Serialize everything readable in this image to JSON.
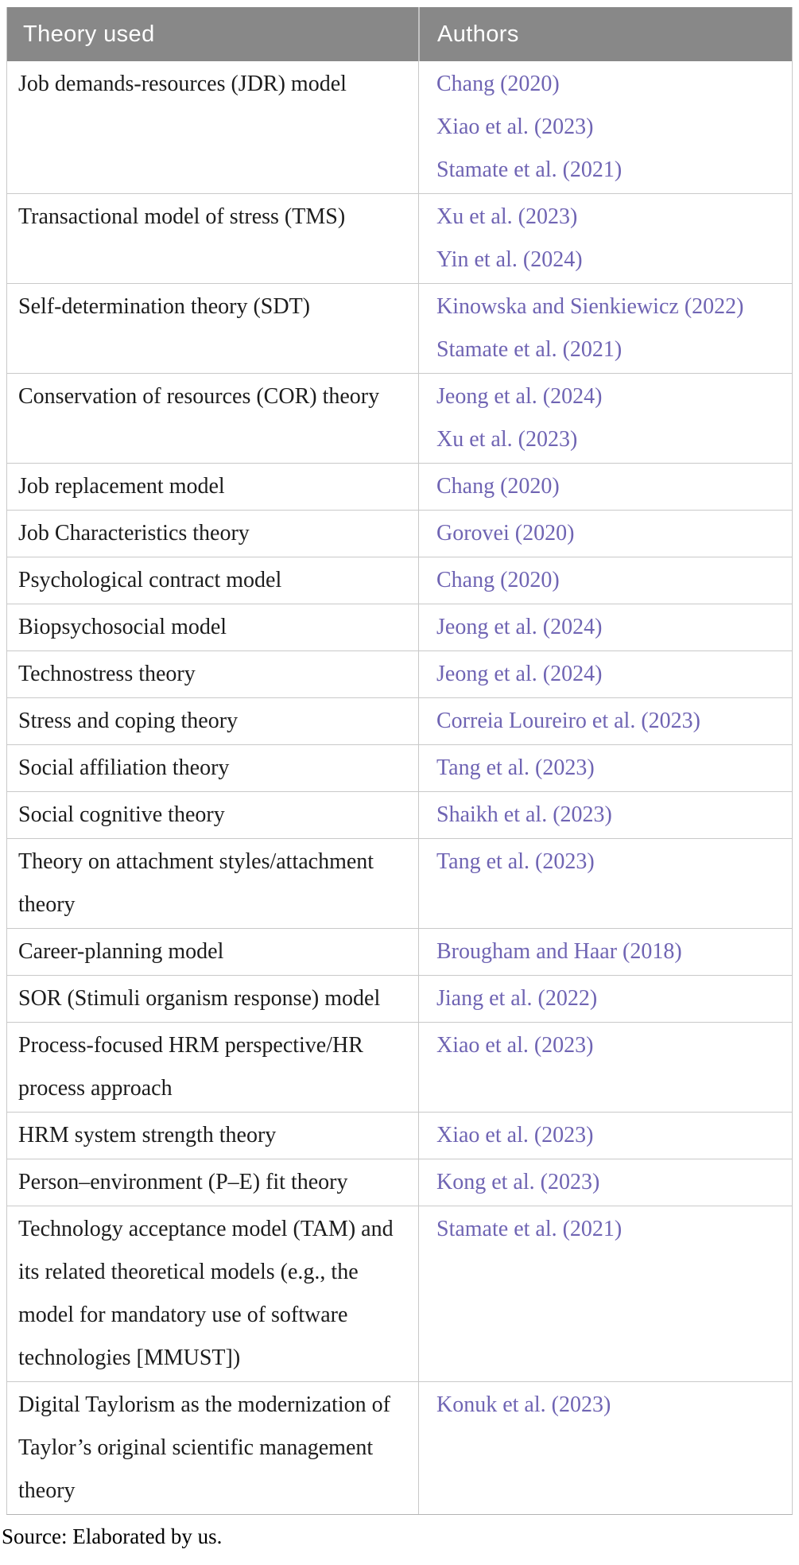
{
  "table": {
    "header": {
      "theory": "Theory used",
      "authors": "Authors"
    },
    "rows": [
      {
        "theory": "Job demands-resources (JDR) model",
        "authors": [
          "Chang (2020)",
          "Xiao et al. (2023)",
          "Stamate et al. (2021)"
        ]
      },
      {
        "theory": "Transactional model of stress (TMS)",
        "authors": [
          "Xu et al. (2023)",
          "Yin et al. (2024)"
        ]
      },
      {
        "theory": "Self-determination theory (SDT)",
        "authors": [
          "Kinowska and Sienkiewicz (2022)",
          "Stamate et al. (2021)"
        ]
      },
      {
        "theory": "Conservation of resources (COR) theory",
        "authors": [
          "Jeong et al. (2024)",
          "Xu et al. (2023)"
        ]
      },
      {
        "theory": "Job replacement model",
        "authors": [
          "Chang (2020)"
        ]
      },
      {
        "theory": "Job Characteristics theory",
        "authors": [
          "Gorovei (2020)"
        ]
      },
      {
        "theory": "Psychological contract model",
        "authors": [
          "Chang (2020)"
        ]
      },
      {
        "theory": "Biopsychosocial model",
        "authors": [
          "Jeong et al. (2024)"
        ]
      },
      {
        "theory": "Technostress theory",
        "authors": [
          "Jeong et al. (2024)"
        ]
      },
      {
        "theory": "Stress and coping theory",
        "authors": [
          "Correia Loureiro et al. (2023)"
        ]
      },
      {
        "theory": "Social affiliation theory",
        "authors": [
          "Tang et al. (2023)"
        ]
      },
      {
        "theory": "Social cognitive theory",
        "authors": [
          "Shaikh et al. (2023)"
        ]
      },
      {
        "theory": "Theory on attachment styles/attachment theory",
        "authors": [
          "Tang et al. (2023)"
        ]
      },
      {
        "theory": "Career-planning model",
        "authors": [
          "Brougham and Haar (2018)"
        ]
      },
      {
        "theory": "SOR (Stimuli organism response) model",
        "authors": [
          "Jiang et al. (2022)"
        ]
      },
      {
        "theory": "Process-focused HRM perspective/HR process approach",
        "authors": [
          "Xiao et al. (2023)"
        ]
      },
      {
        "theory": "HRM system strength theory",
        "authors": [
          "Xiao et al. (2023)"
        ]
      },
      {
        "theory": "Person–environment (P–E) fit theory",
        "authors": [
          "Kong et al. (2023)"
        ]
      },
      {
        "theory": "Technology acceptance model (TAM) and its related theoretical models (e.g., the model for mandatory use of software technologies [MMUST])",
        "authors": [
          "Stamate et al. (2021)"
        ]
      },
      {
        "theory": "Digital Taylorism as the modernization of Taylor’s original scientific management theory",
        "authors": [
          "Konuk et al. (2023)"
        ]
      }
    ]
  },
  "footer": {
    "source": "Source: Elaborated by us."
  },
  "colors": {
    "header_bg": "#888888",
    "header_text": "#ffffff",
    "body_text": "#1c1c1c",
    "link": "#6f64b3",
    "border": "#c9c9c9",
    "border_outer": "#b3b3b3"
  }
}
